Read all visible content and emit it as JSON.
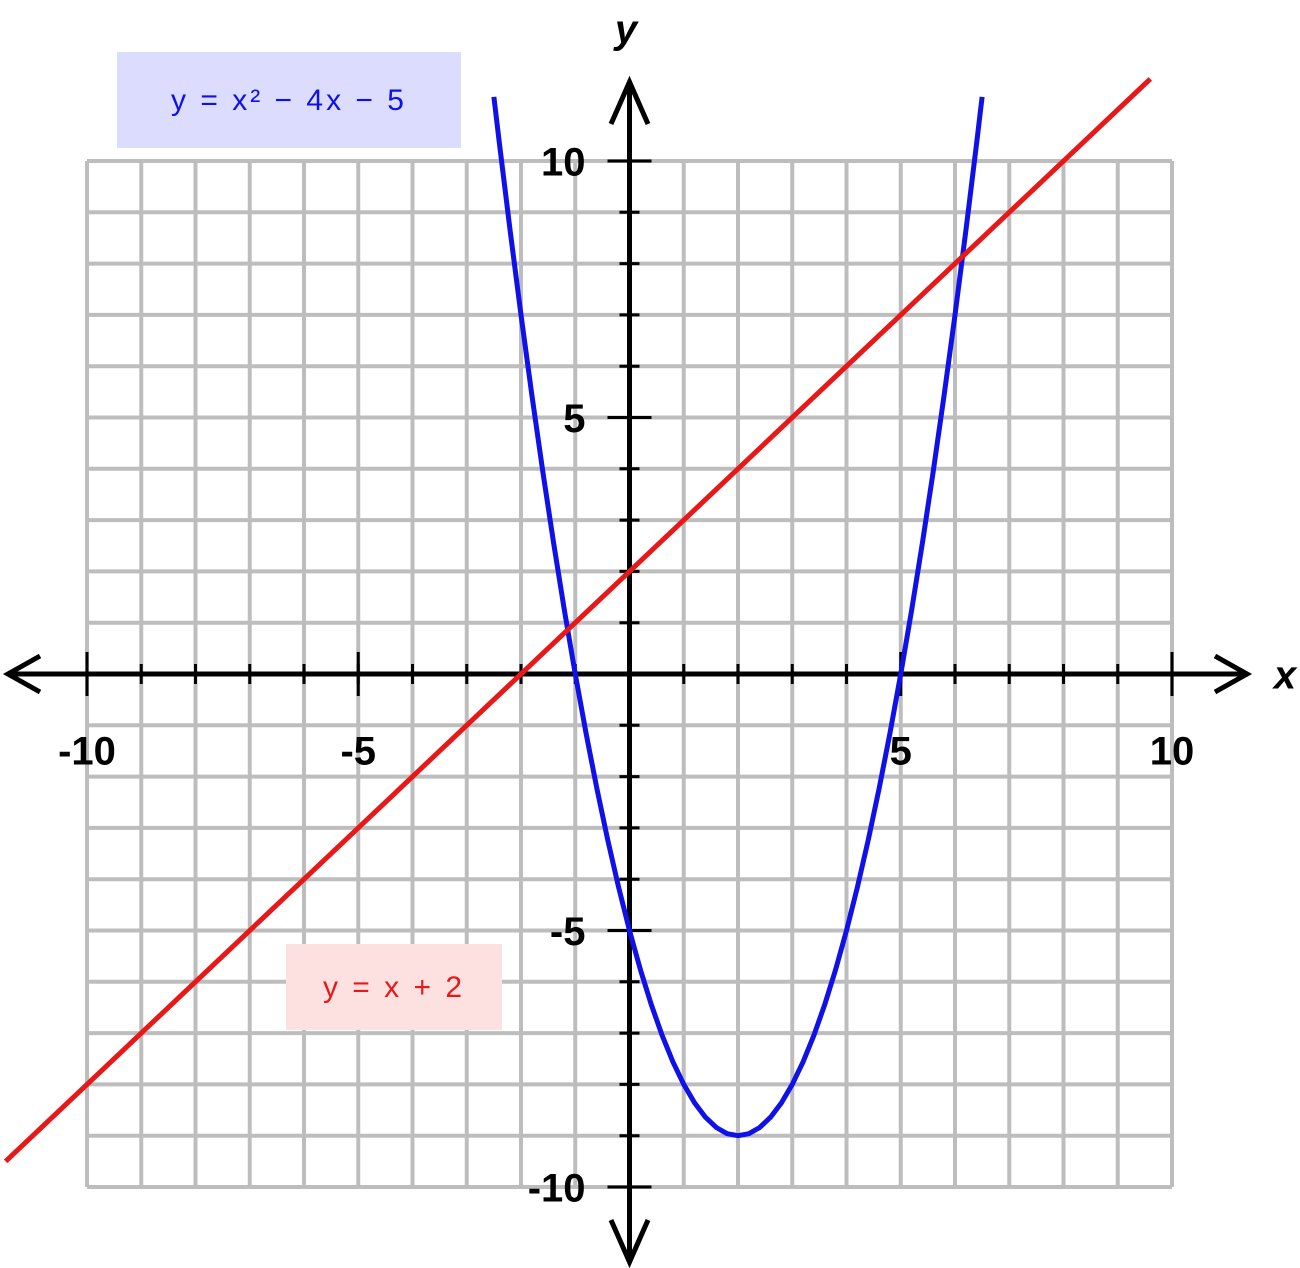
{
  "chart_data": {
    "type": "line",
    "x_label": "x",
    "y_label": "y",
    "xlim": [
      -10,
      10
    ],
    "ylim": [
      -10,
      10
    ],
    "xticks": [
      -10,
      -5,
      5,
      10
    ],
    "yticks": [
      -10,
      -5,
      5,
      10
    ],
    "minor_xticks": [
      -10,
      -9,
      -8,
      -7,
      -6,
      -5,
      -4,
      -3,
      -2,
      -1,
      0,
      1,
      2,
      3,
      4,
      5,
      6,
      7,
      8,
      9,
      10
    ],
    "minor_yticks": [
      -10,
      -9,
      -8,
      -7,
      -6,
      -5,
      -4,
      -3,
      -2,
      -1,
      0,
      1,
      2,
      3,
      4,
      5,
      6,
      7,
      8,
      9,
      10
    ],
    "grid": true,
    "series": [
      {
        "name": "y = x² − 4x − 5",
        "color": "#1010e8",
        "legend_fill": "#dcdcff",
        "x": [
          -2.5,
          -2.4,
          -2.2,
          -2.0,
          -1.8,
          -1.6,
          -1.4,
          -1.2,
          -1.0,
          -0.8,
          -0.6,
          -0.4,
          -0.2,
          0,
          0.2,
          0.4,
          0.6,
          0.8,
          1.0,
          1.2,
          1.4,
          1.6,
          1.8,
          2.0,
          2.2,
          2.4,
          2.6,
          2.8,
          3.0,
          3.2,
          3.4,
          3.6,
          3.8,
          4.0,
          4.2,
          4.4,
          4.6,
          4.8,
          5.0,
          5.2,
          5.4,
          5.6,
          5.8,
          6.0,
          6.2,
          6.4,
          6.5
        ],
        "values": [
          11.25,
          10.36,
          8.64,
          7,
          5.44,
          3.96,
          2.56,
          1.24,
          0,
          -1.16,
          -2.24,
          -3.24,
          -4.16,
          -5,
          -5.76,
          -6.44,
          -7.04,
          -7.56,
          -8,
          -8.36,
          -8.64,
          -8.84,
          -8.96,
          -9,
          -8.96,
          -8.84,
          -8.64,
          -8.36,
          -8,
          -7.56,
          -7.04,
          -6.44,
          -5.76,
          -5,
          -4.16,
          -3.24,
          -2.24,
          -1.16,
          0,
          1.24,
          2.56,
          3.96,
          5.44,
          7,
          8.64,
          10.36,
          11.25
        ]
      },
      {
        "name": "y = x + 2",
        "color": "#e81818",
        "legend_fill": "#fde0e0",
        "x": [
          -11.5,
          9.6
        ],
        "values": [
          -9.5,
          11.6
        ]
      }
    ]
  }
}
